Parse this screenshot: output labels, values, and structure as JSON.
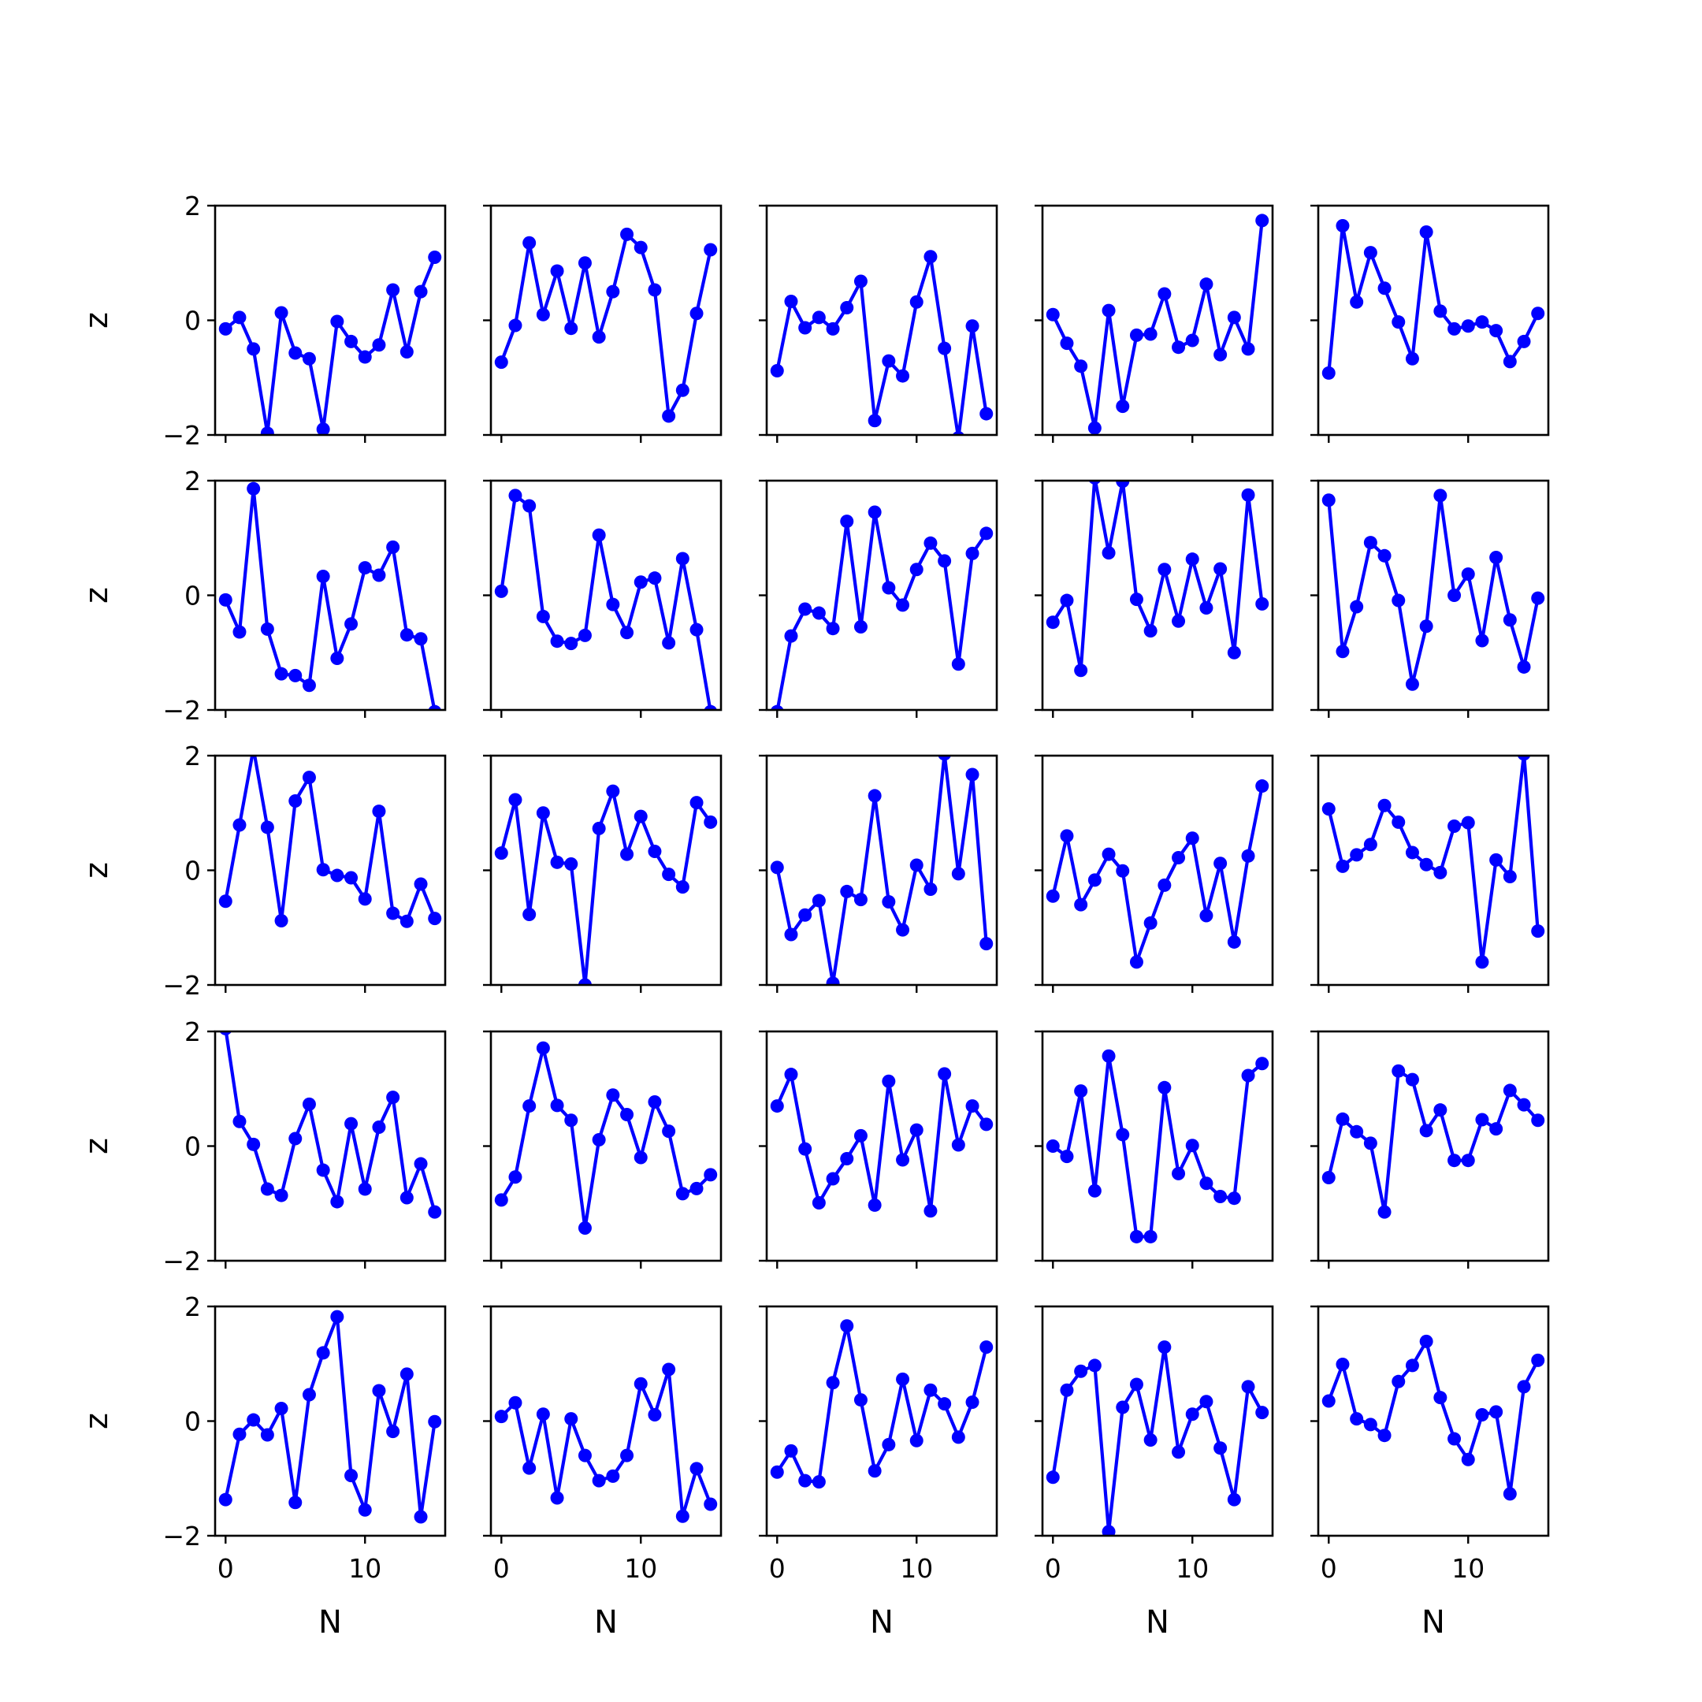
{
  "chart_data": {
    "type": "line",
    "layout": "5x5 grid of subplots, shared x and y axes",
    "xlabel": "N",
    "ylabel": "z",
    "xlim": [
      -0.75,
      15.75
    ],
    "ylim": [
      -2,
      2
    ],
    "xticks": [
      0,
      10
    ],
    "yticks": [
      -2,
      0,
      2
    ],
    "x_tick_labels": [
      "0",
      "10"
    ],
    "y_tick_labels": [
      "−2",
      "0",
      "2"
    ],
    "marker": "circle",
    "grid": false,
    "legend": "none",
    "colors": {
      "series": "#0000ff",
      "axes": "#000000",
      "background": "#ffffff"
    },
    "x": [
      0,
      1,
      2,
      3,
      4,
      5,
      6,
      7,
      8,
      9,
      10,
      11,
      12,
      13,
      14,
      15
    ],
    "panels": [
      {
        "row": 0,
        "col": 0,
        "values": [
          -0.15,
          0.05,
          -0.5,
          -1.97,
          0.13,
          -0.57,
          -0.67,
          -1.9,
          -0.02,
          -0.37,
          -0.64,
          -0.43,
          0.53,
          -0.55,
          0.5,
          1.1
        ]
      },
      {
        "row": 0,
        "col": 1,
        "values": [
          -0.73,
          -0.09,
          1.35,
          0.1,
          0.86,
          -0.14,
          1.0,
          -0.29,
          0.5,
          1.5,
          1.27,
          0.53,
          -1.67,
          -1.22,
          0.12,
          1.23
        ]
      },
      {
        "row": 0,
        "col": 2,
        "values": [
          -0.88,
          0.33,
          -0.13,
          0.05,
          -0.15,
          0.22,
          0.68,
          -1.75,
          -0.71,
          -0.97,
          0.32,
          1.11,
          -0.49,
          -2.05,
          -0.1,
          -1.63
        ]
      },
      {
        "row": 0,
        "col": 3,
        "values": [
          0.1,
          -0.4,
          -0.8,
          -1.88,
          0.17,
          -1.5,
          -0.26,
          -0.24,
          0.46,
          -0.47,
          -0.35,
          0.63,
          -0.6,
          0.05,
          -0.5,
          1.74
        ]
      },
      {
        "row": 0,
        "col": 4,
        "values": [
          -0.92,
          1.65,
          0.32,
          1.18,
          0.56,
          -0.03,
          -0.67,
          1.54,
          0.16,
          -0.15,
          -0.1,
          -0.03,
          -0.18,
          -0.72,
          -0.37,
          0.12
        ]
      },
      {
        "row": 1,
        "col": 0,
        "values": [
          -0.08,
          -0.64,
          1.86,
          -0.59,
          -1.37,
          -1.4,
          -1.57,
          0.33,
          -1.1,
          -0.5,
          0.48,
          0.35,
          0.84,
          -0.69,
          -0.76,
          -2.03
        ]
      },
      {
        "row": 1,
        "col": 1,
        "values": [
          0.07,
          1.74,
          1.56,
          -0.37,
          -0.8,
          -0.84,
          -0.7,
          1.05,
          -0.16,
          -0.65,
          0.23,
          0.3,
          -0.83,
          0.64,
          -0.6,
          -2.03
        ]
      },
      {
        "row": 1,
        "col": 2,
        "values": [
          -2.03,
          -0.71,
          -0.24,
          -0.31,
          -0.58,
          1.29,
          -0.55,
          1.45,
          0.13,
          -0.17,
          0.45,
          0.91,
          0.6,
          -1.2,
          0.73,
          1.08
        ]
      },
      {
        "row": 1,
        "col": 3,
        "values": [
          -0.47,
          -0.09,
          -1.31,
          2.05,
          0.74,
          1.99,
          -0.07,
          -0.62,
          0.45,
          -0.45,
          0.63,
          -0.22,
          0.46,
          -1.0,
          1.75,
          -0.15
        ]
      },
      {
        "row": 1,
        "col": 4,
        "values": [
          1.66,
          -0.98,
          -0.2,
          0.92,
          0.69,
          -0.09,
          -1.55,
          -0.54,
          1.74,
          0.0,
          0.37,
          -0.79,
          0.66,
          -0.43,
          -1.25,
          -0.05
        ]
      },
      {
        "row": 2,
        "col": 0,
        "values": [
          -0.54,
          0.79,
          2.12,
          0.75,
          -0.88,
          1.21,
          1.62,
          0.01,
          -0.09,
          -0.13,
          -0.5,
          1.03,
          -0.75,
          -0.89,
          -0.24,
          -0.84
        ]
      },
      {
        "row": 2,
        "col": 1,
        "values": [
          0.3,
          1.23,
          -0.77,
          1.0,
          0.14,
          0.11,
          -2.0,
          0.73,
          1.38,
          0.28,
          0.94,
          0.33,
          -0.07,
          -0.29,
          1.18,
          0.84
        ]
      },
      {
        "row": 2,
        "col": 2,
        "values": [
          0.05,
          -1.12,
          -0.78,
          -0.53,
          -1.97,
          -0.37,
          -0.51,
          1.3,
          -0.55,
          -1.04,
          0.09,
          -0.33,
          2.03,
          -0.06,
          1.67,
          -1.28
        ]
      },
      {
        "row": 2,
        "col": 3,
        "values": [
          -0.45,
          0.6,
          -0.6,
          -0.17,
          0.28,
          -0.01,
          -1.6,
          -0.92,
          -0.26,
          0.22,
          0.56,
          -0.79,
          0.12,
          -1.25,
          0.25,
          1.47
        ]
      },
      {
        "row": 2,
        "col": 4,
        "values": [
          1.07,
          0.07,
          0.27,
          0.45,
          1.13,
          0.84,
          0.31,
          0.1,
          -0.04,
          0.77,
          0.83,
          -1.6,
          0.18,
          -0.11,
          2.03,
          -1.06
        ]
      },
      {
        "row": 3,
        "col": 0,
        "values": [
          2.05,
          0.43,
          0.03,
          -0.75,
          -0.86,
          0.13,
          0.73,
          -0.42,
          -0.97,
          0.39,
          -0.75,
          0.33,
          0.85,
          -0.9,
          -0.31,
          -1.15
        ]
      },
      {
        "row": 3,
        "col": 1,
        "values": [
          -0.94,
          -0.54,
          0.7,
          1.71,
          0.71,
          0.45,
          -1.43,
          0.11,
          0.89,
          0.55,
          -0.2,
          0.77,
          0.26,
          -0.83,
          -0.74,
          -0.5
        ]
      },
      {
        "row": 3,
        "col": 2,
        "values": [
          0.7,
          1.25,
          -0.05,
          -0.99,
          -0.57,
          -0.22,
          0.18,
          -1.03,
          1.13,
          -0.24,
          0.28,
          -1.13,
          1.26,
          0.02,
          0.7,
          0.38
        ]
      },
      {
        "row": 3,
        "col": 3,
        "values": [
          0.0,
          -0.18,
          0.96,
          -0.78,
          1.57,
          0.2,
          -1.58,
          -1.58,
          1.02,
          -0.48,
          0.01,
          -0.65,
          -0.88,
          -0.91,
          1.23,
          1.44
        ]
      },
      {
        "row": 3,
        "col": 4,
        "values": [
          -0.55,
          0.47,
          0.25,
          0.05,
          -1.15,
          1.31,
          1.16,
          0.27,
          0.63,
          -0.25,
          -0.25,
          0.46,
          0.3,
          0.97,
          0.72,
          0.45
        ]
      },
      {
        "row": 4,
        "col": 0,
        "values": [
          -1.37,
          -0.23,
          0.02,
          -0.24,
          0.22,
          -1.42,
          0.46,
          1.19,
          1.82,
          -0.95,
          -1.55,
          0.53,
          -0.18,
          0.82,
          -1.67,
          -0.01
        ]
      },
      {
        "row": 4,
        "col": 1,
        "values": [
          0.08,
          0.32,
          -0.82,
          0.12,
          -1.34,
          0.04,
          -0.6,
          -1.04,
          -0.96,
          -0.6,
          0.65,
          0.11,
          0.9,
          -1.66,
          -0.83,
          -1.45
        ]
      },
      {
        "row": 4,
        "col": 2,
        "values": [
          -0.89,
          -0.52,
          -1.04,
          -1.06,
          0.67,
          1.66,
          0.37,
          -0.87,
          -0.41,
          0.73,
          -0.34,
          0.54,
          0.3,
          -0.28,
          0.33,
          1.29
        ]
      },
      {
        "row": 4,
        "col": 3,
        "values": [
          -0.98,
          0.54,
          0.87,
          0.97,
          -1.93,
          0.24,
          0.64,
          -0.33,
          1.29,
          -0.54,
          0.12,
          0.34,
          -0.47,
          -1.37,
          0.6,
          0.15
        ]
      },
      {
        "row": 4,
        "col": 4,
        "values": [
          0.35,
          0.99,
          0.04,
          -0.06,
          -0.25,
          0.69,
          0.97,
          1.39,
          0.41,
          -0.31,
          -0.67,
          0.11,
          0.16,
          -1.27,
          0.6,
          1.06
        ]
      }
    ]
  }
}
